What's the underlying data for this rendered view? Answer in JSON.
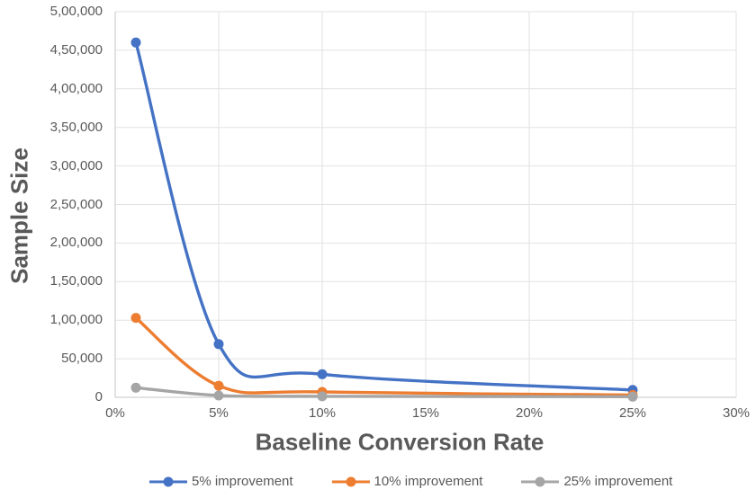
{
  "chart_data": {
    "type": "line",
    "title": "",
    "xlabel": "Baseline Conversion Rate",
    "ylabel": "Sample Size",
    "x_unit": "%",
    "x": [
      1,
      5,
      10,
      25
    ],
    "series": [
      {
        "name": "5% improvement",
        "color": "#4472C4",
        "values": [
          460000,
          69000,
          30000,
          9500
        ]
      },
      {
        "name": "10% improvement",
        "color": "#ED7D31",
        "values": [
          103000,
          15000,
          7000,
          3000
        ]
      },
      {
        "name": "25% improvement",
        "color": "#A5A5A5",
        "values": [
          12500,
          2300,
          1300,
          800
        ]
      }
    ],
    "xlim": [
      0,
      30
    ],
    "ylim": [
      0,
      500000
    ],
    "x_ticks": [
      "0%",
      "5%",
      "10%",
      "15%",
      "20%",
      "25%",
      "30%"
    ],
    "y_ticks": [
      "0",
      "50,000",
      "1,00,000",
      "1,50,000",
      "2,00,000",
      "2,50,000",
      "3,00,000",
      "3,50,000",
      "4,00,000",
      "4,50,000",
      "5,00,000"
    ],
    "grid": true,
    "line_style": "smooth",
    "markers": true,
    "legend_position": "bottom"
  },
  "colors": {
    "background": "#FFFFFF",
    "grid_line": "#E2E2E2",
    "axis_line": "#C6C6C6",
    "tick_text": "#595959",
    "axis_title_text": "#595959",
    "legend_text": "#595959"
  }
}
